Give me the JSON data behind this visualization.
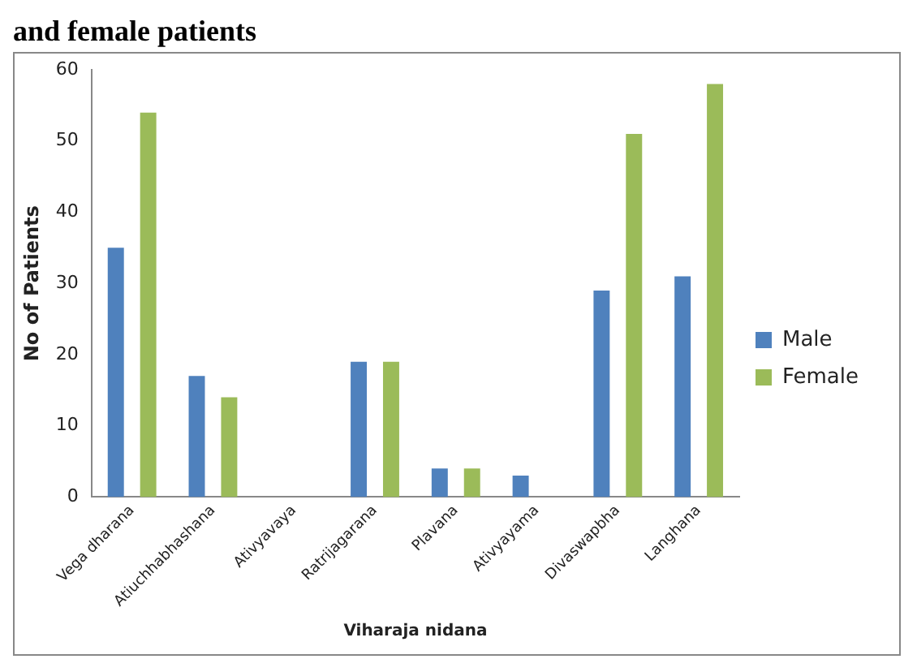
{
  "chart_data": {
    "type": "bar",
    "title": "and female patients",
    "xlabel": "Viharaja nidana",
    "ylabel": "No of Patients",
    "categories": [
      "Vega dharana",
      "Atiuchhabhashana",
      "Ativyavaya",
      "Ratrijagarana",
      "Plavana",
      "Ativyayama",
      "Divaswapbha",
      "Langhana"
    ],
    "series": [
      {
        "name": "Male",
        "color": "#4f81bd",
        "values": [
          35,
          17,
          0,
          19,
          4,
          3,
          29,
          31
        ]
      },
      {
        "name": "Female",
        "color": "#9bbb59",
        "values": [
          54,
          14,
          0,
          19,
          4,
          0,
          51,
          58
        ]
      }
    ],
    "ylim": [
      0,
      60
    ],
    "yticks": [
      0,
      10,
      20,
      30,
      40,
      50,
      60
    ],
    "grid": false,
    "legend": "right"
  }
}
